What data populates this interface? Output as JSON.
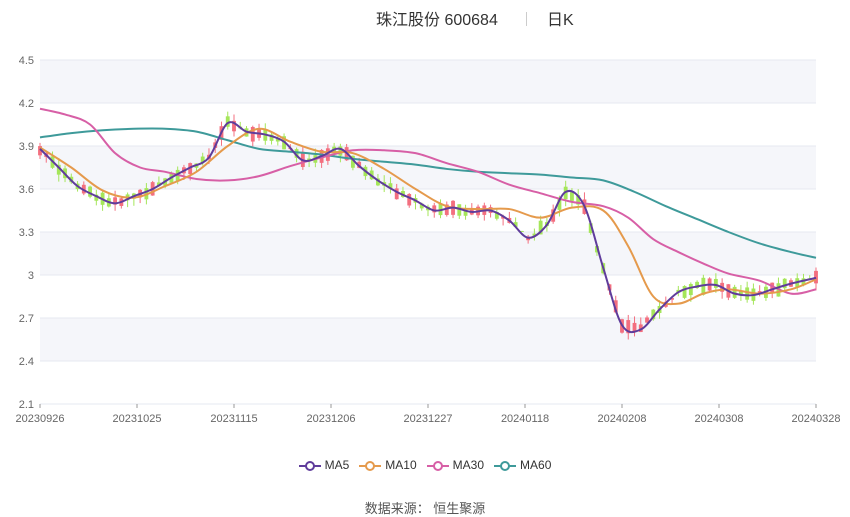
{
  "header": {
    "stock": "珠江股份 600684",
    "period": "日K"
  },
  "source_text": "数据来源： 恒生聚源",
  "colors": {
    "up": "#f36f7f",
    "down": "#a5e65a",
    "grid": "#e6e8f0",
    "band": "#f5f6fa",
    "axis": "#666666"
  },
  "chart_data": {
    "type": "candlestick",
    "title": "珠江股份 600684",
    "x_ticks": [
      "20230926",
      "20231025",
      "20231115",
      "20231206",
      "20231227",
      "20240118",
      "20240208",
      "20240308",
      "20240328"
    ],
    "y_ticks": [
      "4.5",
      "4.2",
      "3.9",
      "3.6",
      "3.3",
      "3",
      "2.7",
      "2.4",
      "2.1"
    ],
    "ylim": [
      2.1,
      4.5
    ],
    "n_days": 125,
    "grid": true,
    "legend_position": "bottom",
    "series": [
      {
        "name": "MA5",
        "color": "#5f3c9b",
        "x": [
          0,
          3,
          6,
          9,
          12,
          15,
          18,
          21,
          24,
          27,
          30,
          33,
          36,
          39,
          42,
          45,
          48,
          51,
          54,
          57,
          60,
          63,
          66,
          69,
          72,
          75,
          78,
          81,
          84,
          87,
          90,
          93,
          96,
          99,
          102,
          105,
          108,
          111,
          114,
          117,
          120,
          124
        ],
        "values": [
          3.88,
          3.75,
          3.62,
          3.55,
          3.5,
          3.55,
          3.6,
          3.68,
          3.75,
          3.82,
          4.06,
          4.0,
          3.98,
          3.93,
          3.8,
          3.83,
          3.88,
          3.76,
          3.66,
          3.58,
          3.52,
          3.45,
          3.47,
          3.44,
          3.45,
          3.38,
          3.26,
          3.35,
          3.58,
          3.48,
          3.05,
          2.65,
          2.62,
          2.76,
          2.88,
          2.92,
          2.93,
          2.87,
          2.86,
          2.9,
          2.94,
          2.98
        ]
      },
      {
        "name": "MA10",
        "color": "#e59a4c",
        "x": [
          0,
          5,
          10,
          15,
          20,
          25,
          30,
          35,
          40,
          45,
          50,
          55,
          60,
          65,
          70,
          75,
          80,
          85,
          90,
          94,
          98,
          102,
          106,
          110,
          115,
          120,
          124
        ],
        "values": [
          3.89,
          3.75,
          3.59,
          3.54,
          3.62,
          3.72,
          3.9,
          4.02,
          3.93,
          3.86,
          3.85,
          3.74,
          3.6,
          3.48,
          3.46,
          3.46,
          3.4,
          3.47,
          3.45,
          3.2,
          2.85,
          2.8,
          2.87,
          2.9,
          2.87,
          2.9,
          2.97
        ]
      },
      {
        "name": "MA30",
        "color": "#d75fa6",
        "x": [
          0,
          4,
          8,
          12,
          16,
          20,
          25,
          30,
          35,
          40,
          45,
          50,
          55,
          60,
          65,
          70,
          75,
          80,
          85,
          90,
          94,
          98,
          102,
          106,
          110,
          115,
          120,
          124
        ],
        "values": [
          4.16,
          4.12,
          4.05,
          3.85,
          3.75,
          3.72,
          3.67,
          3.66,
          3.69,
          3.76,
          3.82,
          3.87,
          3.87,
          3.85,
          3.78,
          3.72,
          3.63,
          3.57,
          3.51,
          3.48,
          3.4,
          3.25,
          3.16,
          3.08,
          3.01,
          2.96,
          2.87,
          2.9
        ]
      },
      {
        "name": "MA60",
        "color": "#3e9a9a",
        "x": [
          0,
          5,
          10,
          15,
          20,
          25,
          30,
          35,
          40,
          45,
          50,
          55,
          60,
          65,
          70,
          75,
          80,
          85,
          90,
          95,
          100,
          105,
          110,
          115,
          120,
          124
        ],
        "values": [
          3.96,
          3.99,
          4.01,
          4.02,
          4.02,
          4.0,
          3.94,
          3.88,
          3.86,
          3.84,
          3.81,
          3.79,
          3.77,
          3.74,
          3.72,
          3.71,
          3.7,
          3.68,
          3.66,
          3.58,
          3.48,
          3.39,
          3.3,
          3.22,
          3.16,
          3.12
        ]
      }
    ]
  }
}
